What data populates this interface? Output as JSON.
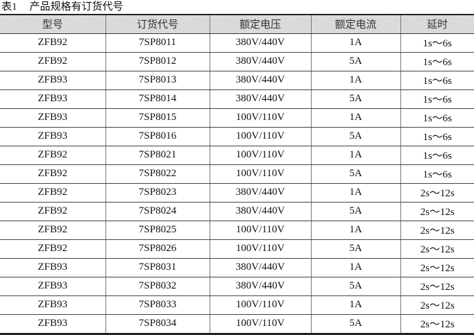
{
  "caption": {
    "label": "表1",
    "title": "产品规格有订货代号"
  },
  "table": {
    "headers": [
      "型号",
      "订货代号",
      "额定电压",
      "额定电流",
      "延时"
    ],
    "rows": [
      [
        "ZFB92",
        "7SP8011",
        "380V/440V",
        "1A",
        "1s～6s"
      ],
      [
        "ZFB92",
        "7SP8012",
        "380V/440V",
        "5A",
        "1s～6s"
      ],
      [
        "ZFB93",
        "7SP8013",
        "380V/440V",
        "1A",
        "1s～6s"
      ],
      [
        "ZFB93",
        "7SP8014",
        "380V/440V",
        "5A",
        "1s～6s"
      ],
      [
        "ZFB93",
        "7SP8015",
        "100V/110V",
        "1A",
        "1s～6s"
      ],
      [
        "ZFB93",
        "7SP8016",
        "100V/110V",
        "5A",
        "1s～6s"
      ],
      [
        "ZFB92",
        "7SP8021",
        "100V/110V",
        "1A",
        "1s～6s"
      ],
      [
        "ZFB92",
        "7SP8022",
        "100V/110V",
        "5A",
        "1s～6s"
      ],
      [
        "ZFB92",
        "7SP8023",
        "380V/440V",
        "1A",
        "2s～12s"
      ],
      [
        "ZFB92",
        "7SP8024",
        "380V/440V",
        "5A",
        "2s～12s"
      ],
      [
        "ZFB92",
        "7SP8025",
        "100V/110V",
        "1A",
        "2s～12s"
      ],
      [
        "ZFB92",
        "7SP8026",
        "100V/110V",
        "5A",
        "2s～12s"
      ],
      [
        "ZFB93",
        "7SP8031",
        "380V/440V",
        "1A",
        "2s～12s"
      ],
      [
        "ZFB93",
        "7SP8032",
        "380V/440V",
        "5A",
        "2s～12s"
      ],
      [
        "ZFB93",
        "7SP8033",
        "100V/110V",
        "1A",
        "2s～12s"
      ],
      [
        "ZFB93",
        "7SP8034",
        "100V/110V",
        "5A",
        "2s～12s"
      ]
    ]
  }
}
